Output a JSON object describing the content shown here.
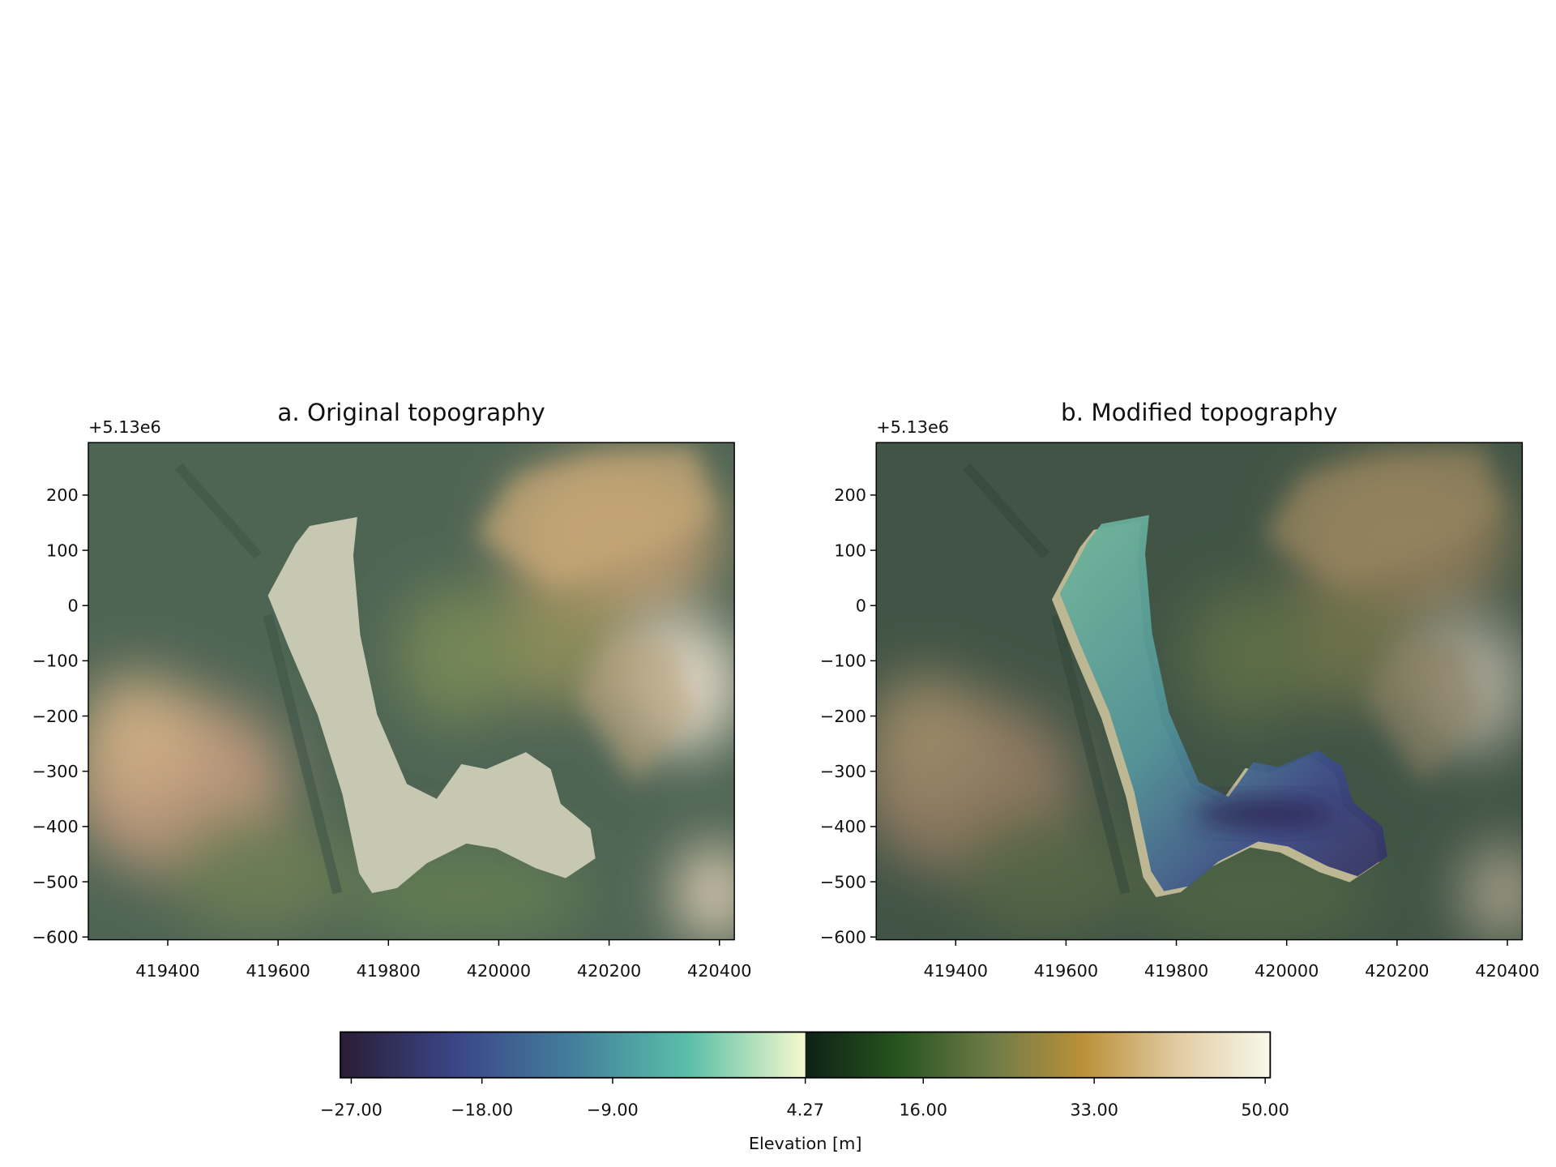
{
  "chart_data": [
    {
      "type": "map",
      "title": "a. Original topography",
      "offset_text": "+5.13e6",
      "xlim": [
        419256,
        420427
      ],
      "ylim": [
        -605,
        295
      ],
      "xticks": [
        419400,
        419600,
        419800,
        420000,
        420200,
        420400
      ],
      "yticks": [
        200,
        100,
        0,
        {
          "value": -100,
          "label": "−100"
        },
        {
          "value": -200,
          "label": "−200"
        },
        {
          "value": -300,
          "label": "−300"
        },
        {
          "value": -400,
          "label": "−400"
        },
        {
          "value": -500,
          "label": "−500"
        },
        {
          "value": -600,
          "label": "−600"
        }
      ]
    },
    {
      "type": "map",
      "title": "b. Modified topography",
      "offset_text": "+5.13e6",
      "xlim": [
        419256,
        420427
      ],
      "ylim": [
        -605,
        295
      ],
      "xticks": [
        419400,
        419600,
        419800,
        420000,
        420200,
        420400
      ],
      "yticks": [
        200,
        100,
        0,
        {
          "value": -100,
          "label": "−100"
        },
        {
          "value": -200,
          "label": "−200"
        },
        {
          "value": -300,
          "label": "−300"
        },
        {
          "value": -400,
          "label": "−400"
        },
        {
          "value": -500,
          "label": "−500"
        },
        {
          "value": -600,
          "label": "−600"
        }
      ]
    },
    {
      "type": "colorbar",
      "label": "Elevation [m]",
      "segments": [
        {
          "range": [
            -27.75,
            4.27
          ],
          "colors": [
            "#2a1d35",
            "#3b4688",
            "#437f9c",
            "#5bbfa8",
            "#f6f9cc"
          ]
        },
        {
          "range": [
            4.27,
            50.5
          ],
          "colors": [
            "#0e2116",
            "#27541f",
            "#6e7b48",
            "#bb913a",
            "#e1cba3",
            "#f8f8ea"
          ]
        }
      ],
      "xticks": [
        {
          "value": -27,
          "label": "−27.00"
        },
        {
          "value": -18,
          "label": "−18.00"
        },
        {
          "value": -9,
          "label": "−9.00"
        },
        4.27,
        {
          "value": 16,
          "label": "16.00"
        },
        {
          "value": 33,
          "label": "33.00"
        },
        {
          "value": 50,
          "label": "50.00"
        }
      ]
    }
  ]
}
